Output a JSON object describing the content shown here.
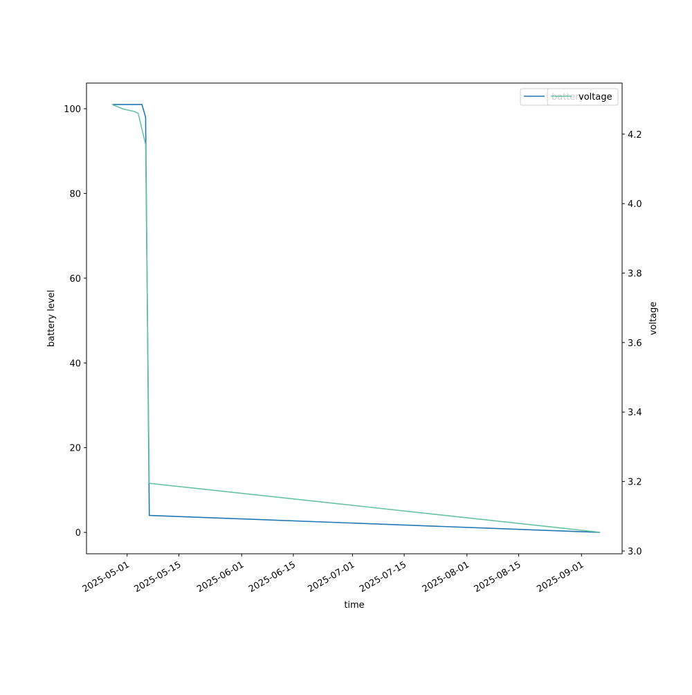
{
  "chart_data": {
    "type": "line",
    "xlabel": "time",
    "ylabel": "battery level",
    "y2label": "voltage",
    "xlim": [
      "2025-04-20",
      "2025-09-12"
    ],
    "xticks": [
      "2025-05-01",
      "2025-05-15",
      "2025-06-01",
      "2025-06-15",
      "2025-07-01",
      "2025-07-15",
      "2025-08-01",
      "2025-08-15",
      "2025-09-01"
    ],
    "ylim": [
      -5.05,
      106.05
    ],
    "yticks": [
      0,
      20,
      40,
      60,
      80,
      100
    ],
    "y2lim": [
      2.992,
      4.347
    ],
    "y2ticks": [
      {
        "value": 3,
        "label": "3.0"
      },
      3.2,
      3.4,
      3.6,
      3.8,
      {
        "value": 4,
        "label": "4.0"
      },
      4.2
    ],
    "legend": "upper right",
    "series": [
      {
        "name": "battery",
        "color": "#1f77b4",
        "axis": "y",
        "x": [
          "2025-04-27",
          "2025-05-05",
          "2025-05-06",
          "2025-05-07",
          "2025-09-06"
        ],
        "values": [
          101,
          101,
          98,
          4,
          0
        ]
      },
      {
        "name": "voltage",
        "color": "#66c2a5",
        "axis": "y2",
        "x": [
          "2025-04-27",
          "2025-04-30",
          "2025-05-03",
          "2025-05-04",
          "2025-05-06",
          "2025-05-07",
          "2025-09-06"
        ],
        "values": [
          4.285,
          4.272,
          4.265,
          4.26,
          4.17,
          3.195,
          3.054
        ]
      }
    ]
  }
}
